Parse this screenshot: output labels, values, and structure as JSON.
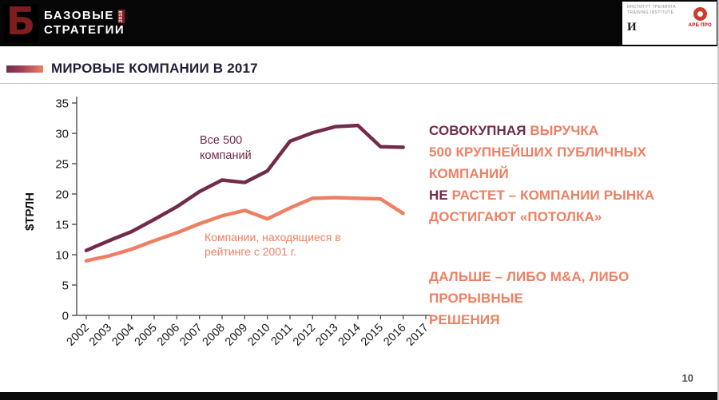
{
  "colors": {
    "maroon": "#722B4B",
    "orange": "#EE7F62",
    "title": "#1E1E38",
    "axis": "#3F3F3F",
    "brand_red": "#7E1E1E",
    "arb_red": "#D03A28"
  },
  "header": {
    "logo_line1": "БАЗОВЫЕ",
    "logo_line2": "СТРАТЕГИИ",
    "logo_year": "2018",
    "logo_mark": "Б",
    "institute_line1": "ИНСТИТУТ ТРЕНИНГА",
    "institute_line2": "TRAINING INSTITUTE",
    "institute_mark": "И",
    "arb_pro": "АРБ ПРО"
  },
  "slide": {
    "title": "МИРОВЫЕ КОМПАНИИ В 2017",
    "page_number": "10"
  },
  "chart_data": {
    "type": "line",
    "title": "",
    "ylabel": "$ТРЛН",
    "xlabel": "",
    "ylim": [
      0,
      35
    ],
    "yticks": [
      0,
      5,
      10,
      15,
      20,
      25,
      30,
      35
    ],
    "grid": false,
    "legend_position": "inline-annotations",
    "x_tick_labels": [
      "2002",
      "2003",
      "2004",
      "2005",
      "2006",
      "2007",
      "2008",
      "2009",
      "2010",
      "2011",
      "2012",
      "2013",
      "2014",
      "2015",
      "2016",
      "2017"
    ],
    "series": [
      {
        "name": "Все 500 компаний",
        "color": "#722B4B",
        "x": [
          2002,
          2003,
          2004,
          2005,
          2006,
          2007,
          2008,
          2009,
          2010,
          2011,
          2012,
          2013,
          2014,
          2015,
          2016
        ],
        "values": [
          10.7,
          12.3,
          13.8,
          15.8,
          17.9,
          20.4,
          22.3,
          21.9,
          23.8,
          28.7,
          30.1,
          31.1,
          31.3,
          27.8,
          27.7
        ]
      },
      {
        "name": "Компании, находящиеся в рейтинге с 2001 г.",
        "color": "#EE7F62",
        "x": [
          2002,
          2003,
          2004,
          2005,
          2006,
          2007,
          2008,
          2009,
          2010,
          2011,
          2012,
          2013,
          2014,
          2015,
          2016
        ],
        "values": [
          9.0,
          9.8,
          10.9,
          12.3,
          13.6,
          15.1,
          16.4,
          17.3,
          15.9,
          17.7,
          19.3,
          19.4,
          19.3,
          19.2,
          16.8
        ]
      }
    ]
  },
  "annotations": {
    "series1_label": "Все 500\nкомпаний",
    "series2_label": "Компании, находящиеся в\nрейтинге с 2001 г."
  },
  "right_text": {
    "block1_lines": [
      [
        {
          "text": "СОВОКУПНАЯ ",
          "color": "maroon"
        },
        {
          "text": "ВЫРУЧКА",
          "color": "orange"
        }
      ],
      [
        {
          "text": "500 КРУПНЕЙШИХ ПУБЛИЧНЫХ КОМПАНИЙ",
          "color": "orange"
        }
      ],
      [
        {
          "text": "НЕ ",
          "color": "maroon"
        },
        {
          "text": "РАСТЕТ – КОМПАНИИ РЫНКА",
          "color": "orange"
        }
      ],
      [
        {
          "text": "ДОСТИГАЮТ «ПОТОЛКА»",
          "color": "orange"
        }
      ]
    ],
    "block2_lines": [
      [
        {
          "text": "ДАЛЬШЕ – ЛИБО M&A, ЛИБО ПРОРЫВНЫЕ",
          "color": "orange"
        }
      ],
      [
        {
          "text": "РЕШЕНИЯ",
          "color": "orange"
        }
      ]
    ]
  }
}
